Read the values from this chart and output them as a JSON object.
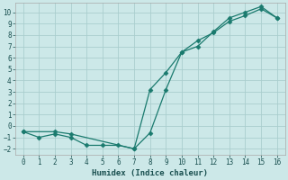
{
  "line1_x": [
    0,
    1,
    2,
    3,
    4,
    5,
    6,
    7,
    8,
    9,
    10,
    11,
    12,
    13,
    14,
    15,
    16
  ],
  "line1_y": [
    -0.5,
    -1.0,
    -0.7,
    -1.0,
    -1.7,
    -1.7,
    -1.7,
    -2.0,
    -0.6,
    3.2,
    6.5,
    7.0,
    8.3,
    9.5,
    10.0,
    10.5,
    9.5
  ],
  "line2_x": [
    0,
    2,
    3,
    7,
    8,
    9,
    10,
    11,
    12,
    13,
    14,
    15,
    16
  ],
  "line2_y": [
    -0.5,
    -0.5,
    -0.7,
    -2.0,
    3.2,
    4.7,
    6.5,
    7.5,
    8.2,
    9.2,
    9.7,
    10.3,
    9.5
  ],
  "color": "#1a7a6e",
  "bg_color": "#cce8e8",
  "grid_color": "#aacece",
  "xlabel": "Humidex (Indice chaleur)",
  "ylim": [
    -2.5,
    10.8
  ],
  "xlim": [
    -0.5,
    16.5
  ],
  "yticks": [
    -2,
    -1,
    0,
    1,
    2,
    3,
    4,
    5,
    6,
    7,
    8,
    9,
    10
  ],
  "xticks": [
    0,
    1,
    2,
    3,
    4,
    5,
    6,
    7,
    8,
    9,
    10,
    11,
    12,
    13,
    14,
    15,
    16
  ],
  "markersize": 2.5,
  "linewidth": 0.9,
  "font_family": "monospace",
  "tick_fontsize": 5.5,
  "xlabel_fontsize": 6.5
}
